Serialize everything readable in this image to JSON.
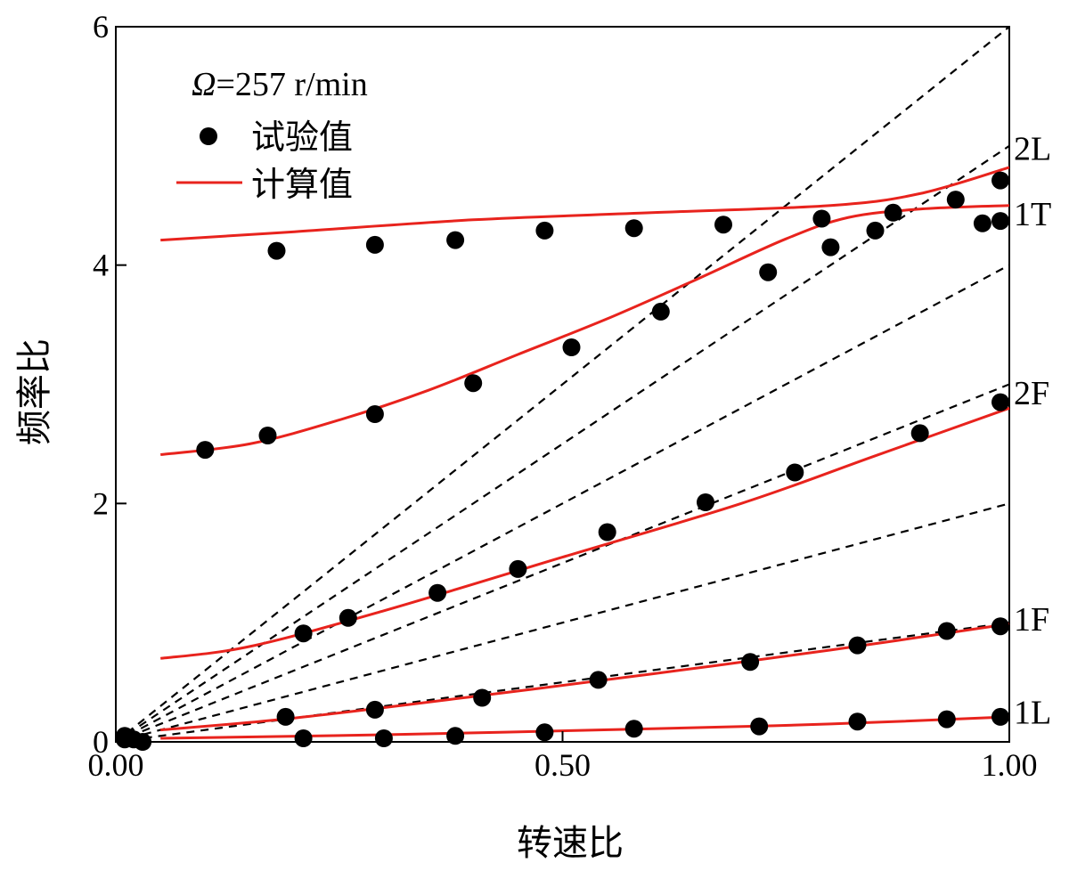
{
  "chart_data": {
    "type": "line",
    "title": "",
    "xlabel": "转速比",
    "ylabel": "频率比",
    "xlim": [
      0,
      1.0
    ],
    "ylim": [
      0,
      6
    ],
    "x_ticks": [
      {
        "value": 0.0,
        "label": "0.00"
      },
      {
        "value": 0.5,
        "label": "0.50"
      },
      {
        "value": 1.0,
        "label": "1.00"
      }
    ],
    "y_ticks": [
      {
        "value": 0,
        "label": "0"
      },
      {
        "value": 2,
        "label": "2"
      },
      {
        "value": 4,
        "label": "4"
      },
      {
        "value": 6,
        "label": "6"
      }
    ],
    "grid": false,
    "legend": {
      "placement": "top-left",
      "condition_symbol": "Ω",
      "condition_text": "=257 r/min",
      "entries": [
        {
          "label": "试验值",
          "marker": "dot",
          "color": "#000000"
        },
        {
          "label": "计算值",
          "marker": "line",
          "color": "#e8231d"
        }
      ]
    },
    "reference_lines": {
      "color": "#000000",
      "style": "dashed",
      "slopes": [
        1,
        2,
        3,
        4,
        5,
        6
      ]
    },
    "series": [
      {
        "type": "line",
        "color": "#e8231d",
        "x": [
          0.05,
          0.2,
          0.4,
          0.6,
          0.8,
          0.9,
          1.0
        ],
        "y": [
          4.21,
          4.28,
          4.38,
          4.44,
          4.5,
          4.6,
          4.82
        ]
      },
      {
        "type": "line",
        "color": "#e8231d",
        "x": [
          0.05,
          0.15,
          0.25,
          0.35,
          0.45,
          0.55,
          0.65,
          0.75,
          0.82,
          0.9,
          1.0
        ],
        "y": [
          2.41,
          2.5,
          2.7,
          2.95,
          3.25,
          3.55,
          3.88,
          4.22,
          4.4,
          4.47,
          4.5
        ]
      },
      {
        "type": "line",
        "color": "#e8231d",
        "x": [
          0.05,
          0.15,
          0.3,
          0.5,
          0.7,
          0.85,
          1.0
        ],
        "y": [
          0.7,
          0.8,
          1.1,
          1.55,
          2.0,
          2.4,
          2.8
        ]
      },
      {
        "type": "line",
        "color": "#e8231d",
        "x": [
          0.05,
          0.2,
          0.4,
          0.6,
          0.8,
          1.0
        ],
        "y": [
          0.1,
          0.2,
          0.38,
          0.57,
          0.77,
          0.99
        ]
      },
      {
        "type": "line",
        "color": "#e8231d",
        "x": [
          0.05,
          0.3,
          0.6,
          0.8,
          1.0
        ],
        "y": [
          0.03,
          0.06,
          0.11,
          0.15,
          0.21
        ]
      },
      {
        "type": "scatter",
        "color": "#000000",
        "x": [
          0.18,
          0.29,
          0.38,
          0.48,
          0.58,
          0.68,
          0.79,
          0.87,
          0.94,
          0.99,
          0.17,
          0.29,
          0.4,
          0.51,
          0.61,
          0.73,
          0.8,
          0.85,
          0.97,
          0.99,
          0.01,
          0.03,
          0.1,
          0.21,
          0.26,
          0.36,
          0.45,
          0.55,
          0.66,
          0.76,
          0.9,
          0.99,
          0.19,
          0.29,
          0.41,
          0.54,
          0.71,
          0.83,
          0.93,
          0.99,
          0.21,
          0.3,
          0.38,
          0.48,
          0.58,
          0.72,
          0.83,
          0.93,
          0.99,
          0.01,
          0.02
        ],
        "y": [
          4.12,
          4.17,
          4.21,
          4.29,
          4.31,
          4.34,
          4.39,
          4.44,
          4.55,
          4.71,
          2.57,
          2.75,
          3.01,
          3.31,
          3.61,
          3.94,
          4.15,
          4.29,
          4.35,
          4.37,
          0.05,
          0.0,
          2.45,
          0.91,
          1.04,
          1.25,
          1.45,
          1.76,
          2.01,
          2.26,
          2.59,
          2.85,
          0.21,
          0.27,
          0.37,
          0.52,
          0.67,
          0.81,
          0.93,
          0.97,
          0.03,
          0.03,
          0.05,
          0.08,
          0.11,
          0.13,
          0.17,
          0.19,
          0.21,
          0.02,
          0.02
        ]
      }
    ],
    "curve_labels": [
      {
        "text": "2L",
        "y": 4.98
      },
      {
        "text": "1T",
        "y": 4.43
      },
      {
        "text": "2F",
        "y": 2.93
      },
      {
        "text": "1F",
        "y": 1.03
      },
      {
        "text": "1L",
        "y": 0.25
      }
    ]
  }
}
